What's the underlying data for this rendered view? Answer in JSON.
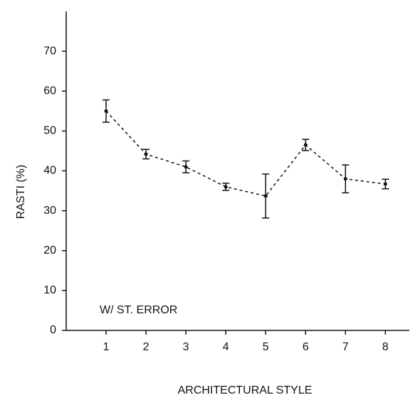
{
  "chart_data": {
    "type": "line",
    "x": [
      1,
      2,
      3,
      4,
      5,
      6,
      7,
      8
    ],
    "series": [
      {
        "values": [
          55,
          44.2,
          41,
          36,
          33.7,
          46.5,
          38,
          36.7
        ],
        "errors": [
          2.8,
          1.2,
          1.5,
          0.9,
          5.5,
          1.4,
          3.5,
          1.2
        ],
        "color": "#111111"
      }
    ],
    "xlim": [
      0,
      8.6
    ],
    "ylim": [
      0,
      80
    ],
    "xticks": [
      1,
      2,
      3,
      4,
      5,
      6,
      7,
      8
    ],
    "yticks": [
      0,
      10,
      20,
      30,
      40,
      50,
      60,
      70
    ],
    "x_label": "ARCHITECTURAL STYLE",
    "y_label": "RASTI (%)",
    "annotation": "W/ ST. ERROR",
    "line_style": "dashed",
    "grid": false
  }
}
